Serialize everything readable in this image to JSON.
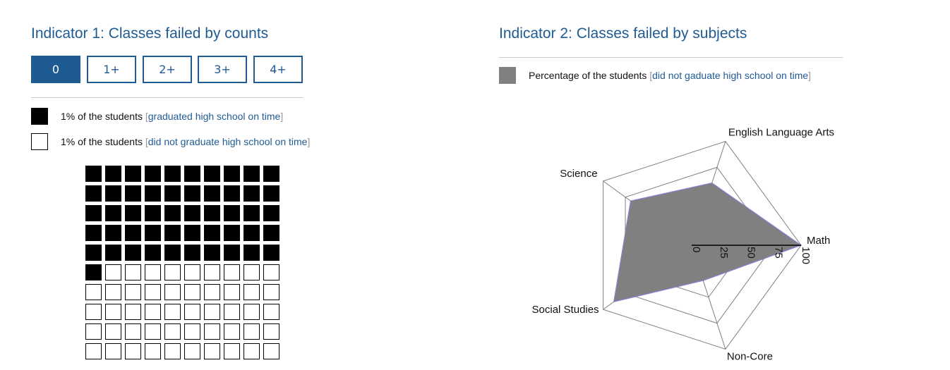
{
  "indicator1": {
    "title": "Indicator 1: Classes failed by counts",
    "tabs": [
      {
        "label": "0",
        "active": true
      },
      {
        "label": "1+",
        "active": false
      },
      {
        "label": "2+",
        "active": false
      },
      {
        "label": "3+",
        "active": false
      },
      {
        "label": "4+",
        "active": false
      }
    ],
    "legend": {
      "graduated": {
        "prefix": "1% of the students",
        "link": "graduated high school on time"
      },
      "not_graduated": {
        "prefix": "1% of the students",
        "link": "did not graduate high school on time"
      }
    }
  },
  "indicator2": {
    "title": "Indicator 2: Classes failed by subjects",
    "legend": {
      "prefix": "Percentage of the students",
      "link": "did not gaduate high school on time"
    }
  },
  "colors": {
    "accent": "#1f5b93",
    "filled": "#000000",
    "radar_fill": "#808080",
    "radar_stroke": "#8a7fd6",
    "grid": "#7f7f7f"
  },
  "chart_data": [
    {
      "type": "waffle",
      "rows": 10,
      "columns": 10,
      "filled_count": 51,
      "total": 100,
      "filled_series": "graduated high school on time",
      "empty_series": "did not graduate high school on time"
    },
    {
      "type": "radar",
      "axes": [
        "Math",
        "English Language Arts",
        "Science",
        "Social Studies",
        "Non-Core"
      ],
      "values": [
        100,
        60,
        69,
        88,
        34
      ],
      "range": [
        0,
        100
      ],
      "ticks": [
        "0",
        "25",
        "50",
        "75",
        "100"
      ]
    }
  ]
}
